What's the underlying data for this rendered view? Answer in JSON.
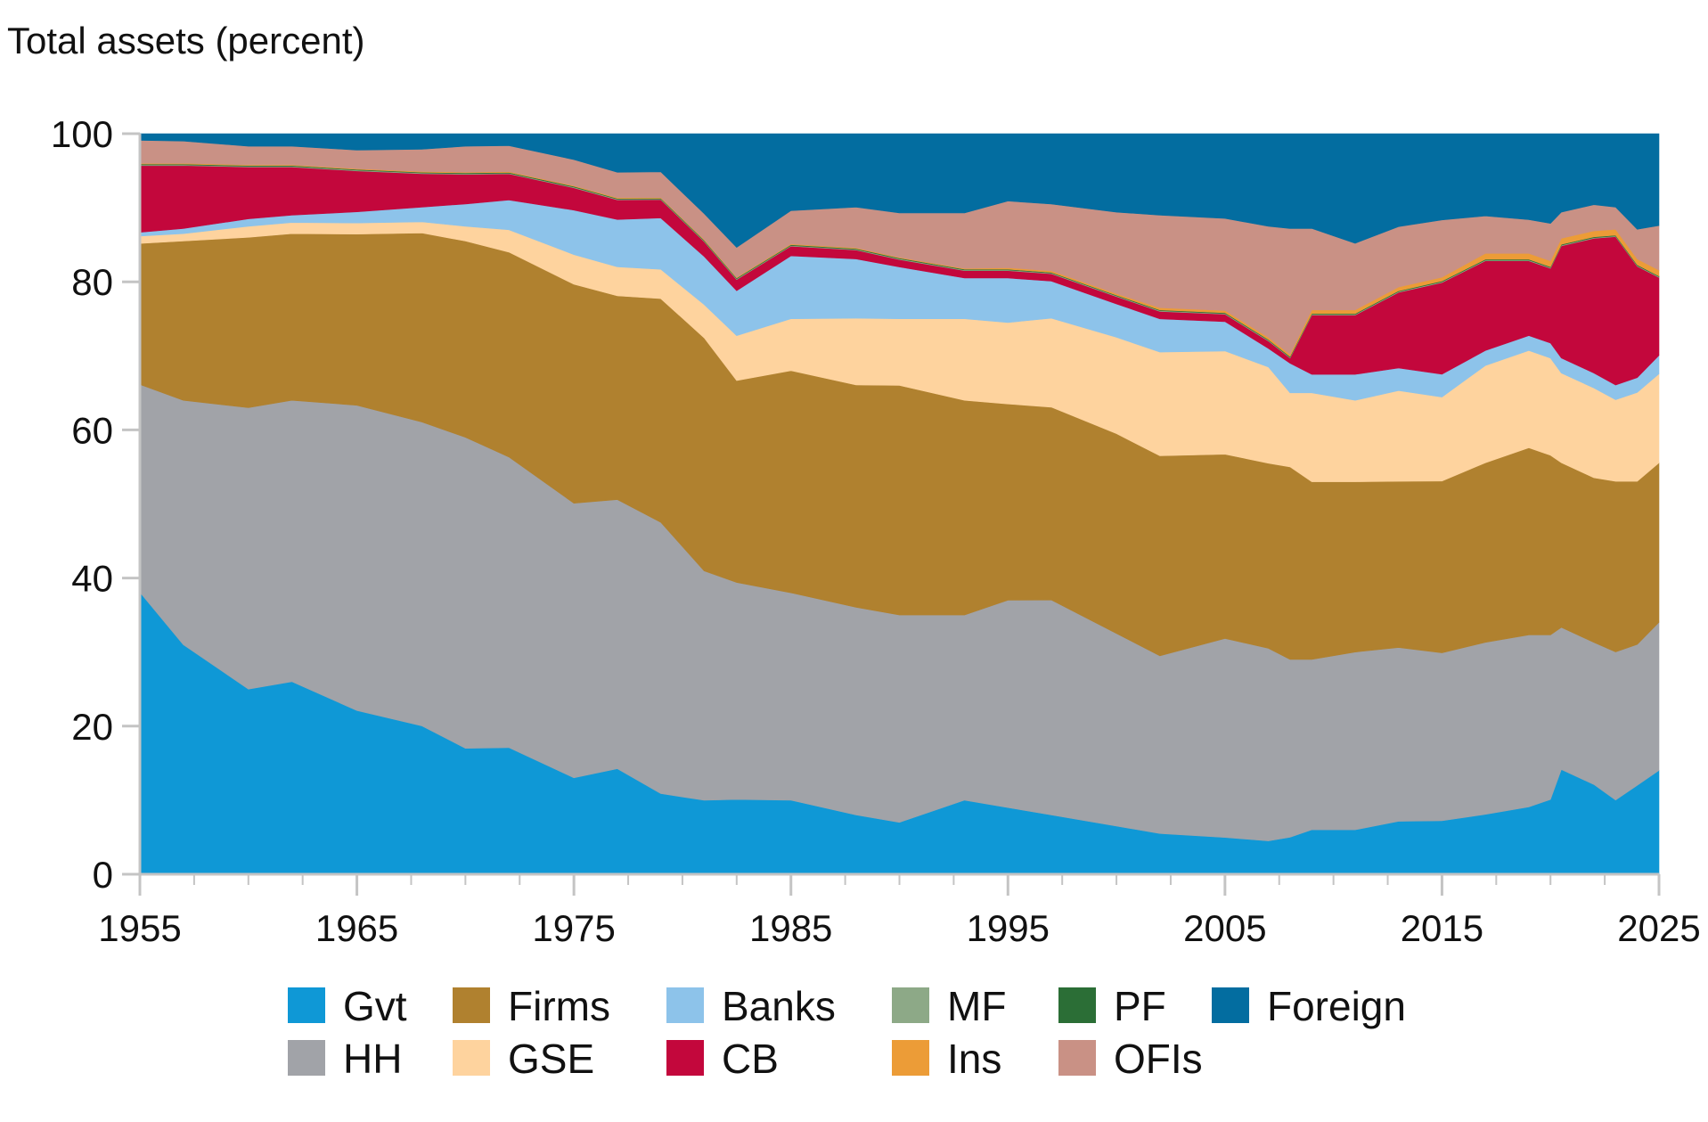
{
  "chart_data": {
    "type": "area",
    "stacked": true,
    "ylabel": "Total assets (percent)",
    "xlim": [
      1955,
      2025
    ],
    "ylim": [
      0,
      100
    ],
    "x_ticks": [
      1955,
      1965,
      1975,
      1985,
      1995,
      2005,
      2015,
      2025
    ],
    "y_ticks": [
      0,
      20,
      40,
      60,
      80,
      100
    ],
    "x": [
      1955,
      1957,
      1960,
      1962,
      1965,
      1968,
      1970,
      1972,
      1975,
      1977,
      1979,
      1981,
      1982.5,
      1985,
      1988,
      1990,
      1993,
      1995,
      1997,
      2000,
      2002,
      2005,
      2007,
      2008,
      2009,
      2011,
      2013,
      2015,
      2017,
      2019,
      2020,
      2020.5,
      2022,
      2023,
      2024,
      2025
    ],
    "series": [
      {
        "name": "Gvt",
        "color": "#0f98d6",
        "values": [
          38,
          31,
          25,
          26,
          22,
          20,
          17,
          17,
          13,
          14.5,
          11,
          10,
          10,
          10,
          8,
          7,
          10,
          9,
          8,
          6.5,
          5.5,
          5,
          4.5,
          5,
          6,
          6,
          7,
          7,
          8,
          9,
          10,
          14,
          12,
          10,
          12,
          14
        ]
      },
      {
        "name": "HH",
        "color": "#a1a3a8",
        "values": [
          28,
          33,
          38,
          38,
          41,
          41,
          42,
          39,
          37,
          37,
          37,
          31,
          29,
          28,
          28,
          28,
          25,
          28,
          29,
          26,
          24,
          27,
          26,
          24,
          23,
          24,
          23,
          22,
          23,
          23,
          22,
          19,
          19,
          20,
          19,
          20
        ]
      },
      {
        "name": "Firms",
        "color": "#b0812f",
        "values": [
          19,
          21.5,
          23,
          22.5,
          23,
          25.5,
          26.5,
          27.5,
          29.5,
          28,
          30.5,
          31.5,
          27,
          30,
          30,
          31,
          29,
          26.5,
          26,
          27,
          27,
          25,
          25,
          26,
          24,
          23,
          22,
          22.5,
          24,
          25,
          24,
          22,
          22,
          23,
          22,
          21.5
        ]
      },
      {
        "name": "GSE",
        "color": "#fed39e",
        "values": [
          1,
          1,
          1.5,
          1.5,
          1.5,
          1.5,
          2,
          3,
          4,
          4,
          4,
          4.5,
          6,
          7,
          9,
          9,
          11,
          11,
          12,
          13,
          14,
          14,
          13,
          10,
          12,
          11,
          12,
          11,
          13,
          13,
          13,
          12,
          12,
          11,
          12,
          12
        ]
      },
      {
        "name": "Banks",
        "color": "#8dc3ea",
        "values": [
          0.5,
          0.7,
          1,
          1,
          1.5,
          2,
          3,
          4,
          6,
          6.5,
          7,
          6.5,
          6,
          8.5,
          8,
          7,
          5.5,
          6,
          5,
          4.5,
          4.5,
          4,
          2.5,
          4,
          2.5,
          3.5,
          3,
          3,
          2,
          2,
          2,
          2,
          2,
          2,
          2,
          2.5
        ]
      },
      {
        "name": "CB",
        "color": "#c3073c",
        "values": [
          9,
          8.5,
          7,
          6.5,
          5.5,
          4.5,
          4,
          3.5,
          3,
          2.7,
          2.5,
          2,
          1.5,
          1.3,
          1.2,
          1,
          1,
          1,
          1,
          1,
          1,
          1,
          1,
          0.7,
          8,
          8,
          10,
          12,
          12,
          10,
          10,
          15,
          18,
          20,
          15,
          10.5
        ]
      },
      {
        "name": "MF",
        "color": "#8da987",
        "values": [
          0.1,
          0.1,
          0.1,
          0.1,
          0.1,
          0.1,
          0.1,
          0.1,
          0.1,
          0.1,
          0.1,
          0.1,
          0.1,
          0.1,
          0.1,
          0.1,
          0.1,
          0.1,
          0.1,
          0.1,
          0.1,
          0.1,
          0.1,
          0.1,
          0.1,
          0.1,
          0.1,
          0.1,
          0.1,
          0.1,
          0.1,
          0.1,
          0.1,
          0.1,
          0.1,
          0.1
        ]
      },
      {
        "name": "PF",
        "color": "#2b6e36",
        "values": [
          0.1,
          0.1,
          0.1,
          0.1,
          0.1,
          0.1,
          0.1,
          0.1,
          0.1,
          0.1,
          0.1,
          0.1,
          0.1,
          0.1,
          0.1,
          0.1,
          0.1,
          0.1,
          0.1,
          0.1,
          0.1,
          0.1,
          0.1,
          0.1,
          0.1,
          0.1,
          0.1,
          0.1,
          0.1,
          0.1,
          0.1,
          0.1,
          0.1,
          0.1,
          0.1,
          0.1
        ]
      },
      {
        "name": "Ins",
        "color": "#ec9c37",
        "values": [
          0.1,
          0.1,
          0.1,
          0.1,
          0.1,
          0.1,
          0.1,
          0.1,
          0.1,
          0.1,
          0.1,
          0.1,
          0.1,
          0.1,
          0.1,
          0.1,
          0.1,
          0.2,
          0.2,
          0.2,
          0.3,
          0.3,
          0.3,
          0.3,
          0.5,
          0.5,
          0.5,
          0.5,
          0.8,
          0.8,
          0.8,
          0.8,
          0.8,
          0.8,
          0.8,
          0.8
        ]
      },
      {
        "name": "OFIs",
        "color": "#c99185",
        "values": [
          3.1,
          3,
          2.5,
          2.5,
          2.5,
          3,
          3.5,
          3.5,
          3.5,
          3.5,
          3.5,
          3.5,
          4,
          4.5,
          5.5,
          6,
          7.5,
          9,
          9,
          11,
          12.5,
          12.5,
          15,
          17,
          11,
          9,
          8,
          7.5,
          5,
          4.5,
          5,
          3.5,
          3.5,
          3,
          4,
          6
        ]
      },
      {
        "name": "Foreign",
        "color": "#036da0",
        "values": [
          0.9,
          1,
          1.7,
          1.7,
          2.2,
          2.1,
          1.7,
          1.6,
          3.5,
          5.3,
          5.2,
          10.8,
          15.2,
          10.4,
          9.9,
          10.7,
          10.7,
          9.1,
          9.5,
          10.6,
          11,
          11.5,
          12.5,
          12.8,
          12.8,
          14.8,
          12.3,
          11.3,
          11,
          11.5,
          12,
          10.5,
          9.5,
          9.9,
          12.9,
          12.4
        ]
      }
    ],
    "legend": {
      "placement": "bottom",
      "items": [
        "Gvt",
        "Firms",
        "Banks",
        "MF",
        "PF",
        "Foreign",
        "HH",
        "GSE",
        "CB",
        "Ins",
        "OFIs"
      ]
    },
    "grid": false
  }
}
